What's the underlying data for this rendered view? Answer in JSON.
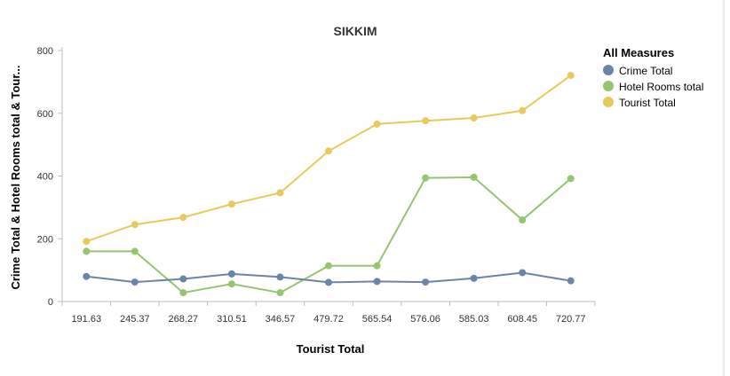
{
  "chart_data": {
    "type": "line",
    "title": "SIKKIM",
    "xlabel": "Tourist Total",
    "ylabel": "Crime Total & Hotel Rooms total & Tour...",
    "categories": [
      "191.63",
      "245.37",
      "268.27",
      "310.51",
      "346.57",
      "479.72",
      "565.54",
      "576.06",
      "585.03",
      "608.45",
      "720.77"
    ],
    "ylim": [
      0,
      800
    ],
    "yticks": [
      "0",
      "200",
      "400",
      "600",
      "800"
    ],
    "yticks_values": [
      0,
      200,
      400,
      600,
      800
    ],
    "grid": false,
    "legend": {
      "title": "All Measures",
      "position": "top-right"
    },
    "series": [
      {
        "name": "Crime Total",
        "color": "#6c84a8",
        "values": [
          80,
          62,
          72,
          88,
          78,
          61,
          64,
          62,
          74,
          92,
          66
        ]
      },
      {
        "name": "Hotel Rooms total",
        "color": "#97c470",
        "values": [
          160,
          160,
          28,
          56,
          28,
          114,
          114,
          394,
          396,
          260,
          392
        ]
      },
      {
        "name": "Tourist Total",
        "color": "#e8ca5c",
        "values": [
          191.63,
          245.37,
          268.27,
          310.51,
          346.57,
          479.72,
          565.54,
          576.06,
          585.03,
          608.45,
          720.77
        ]
      }
    ]
  }
}
